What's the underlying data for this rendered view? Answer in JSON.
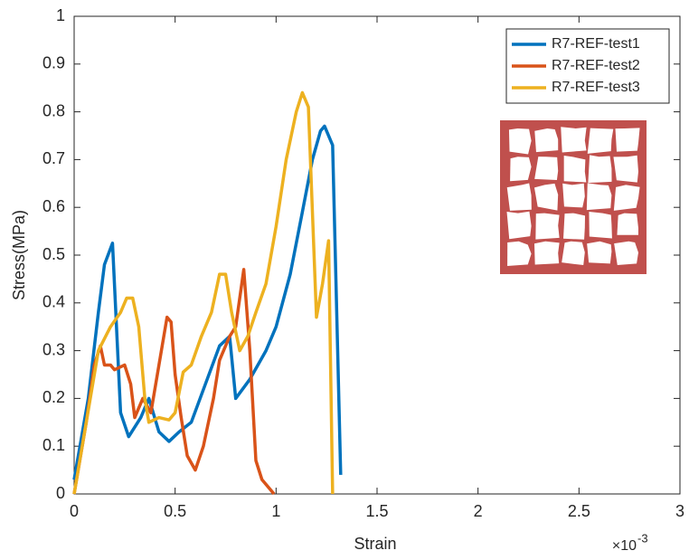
{
  "chart_data": {
    "type": "line",
    "xlabel": "Strain",
    "ylabel": "Stress(MPa)",
    "x_multiplier": {
      "base": "×10",
      "exponent": "-3"
    },
    "xlim": [
      0,
      3
    ],
    "xticks": [
      0,
      0.5,
      1,
      1.5,
      2,
      2.5,
      3
    ],
    "ylim": [
      0,
      1
    ],
    "yticks": [
      0,
      0.1,
      0.2,
      0.3,
      0.4,
      0.5,
      0.6,
      0.7,
      0.8,
      0.9,
      1
    ],
    "grid": false,
    "legend": "upper-right",
    "series": [
      {
        "name": "R7-REF-test1",
        "color": "#0072bd",
        "x": [
          0,
          0.07,
          0.12,
          0.15,
          0.19,
          0.23,
          0.27,
          0.33,
          0.37,
          0.42,
          0.47,
          0.52,
          0.58,
          0.65,
          0.72,
          0.77,
          0.8,
          0.87,
          0.95,
          1.0,
          1.07,
          1.13,
          1.18,
          1.22,
          1.24,
          1.28,
          1.32
        ],
        "values": [
          0.03,
          0.2,
          0.38,
          0.48,
          0.525,
          0.17,
          0.12,
          0.16,
          0.2,
          0.13,
          0.11,
          0.13,
          0.15,
          0.23,
          0.31,
          0.33,
          0.2,
          0.24,
          0.3,
          0.35,
          0.46,
          0.59,
          0.7,
          0.76,
          0.77,
          0.73,
          0.04
        ]
      },
      {
        "name": "R7-REF-test2",
        "color": "#d95319",
        "x": [
          0,
          0.06,
          0.1,
          0.13,
          0.15,
          0.18,
          0.2,
          0.25,
          0.28,
          0.3,
          0.34,
          0.38,
          0.42,
          0.46,
          0.48,
          0.5,
          0.53,
          0.56,
          0.6,
          0.64,
          0.69,
          0.72,
          0.77,
          0.8,
          0.84,
          0.87,
          0.9,
          0.93,
          0.99
        ],
        "values": [
          0,
          0.15,
          0.27,
          0.31,
          0.27,
          0.27,
          0.26,
          0.27,
          0.23,
          0.16,
          0.2,
          0.17,
          0.27,
          0.37,
          0.36,
          0.25,
          0.16,
          0.08,
          0.05,
          0.1,
          0.2,
          0.28,
          0.33,
          0.35,
          0.47,
          0.3,
          0.07,
          0.03,
          0
        ]
      },
      {
        "name": "R7-REF-test3",
        "color": "#edb120",
        "x": [
          0,
          0.06,
          0.12,
          0.18,
          0.23,
          0.26,
          0.29,
          0.32,
          0.35,
          0.37,
          0.42,
          0.47,
          0.5,
          0.54,
          0.58,
          0.63,
          0.68,
          0.72,
          0.75,
          0.78,
          0.82,
          0.86,
          0.9,
          0.95,
          1.0,
          1.05,
          1.1,
          1.13,
          1.16,
          1.2,
          1.23,
          1.26,
          1.28
        ],
        "values": [
          0,
          0.15,
          0.3,
          0.35,
          0.38,
          0.41,
          0.41,
          0.35,
          0.2,
          0.15,
          0.16,
          0.155,
          0.17,
          0.255,
          0.27,
          0.33,
          0.38,
          0.46,
          0.46,
          0.38,
          0.3,
          0.33,
          0.38,
          0.44,
          0.56,
          0.7,
          0.8,
          0.84,
          0.81,
          0.37,
          0.44,
          0.53,
          0
        ]
      }
    ]
  }
}
